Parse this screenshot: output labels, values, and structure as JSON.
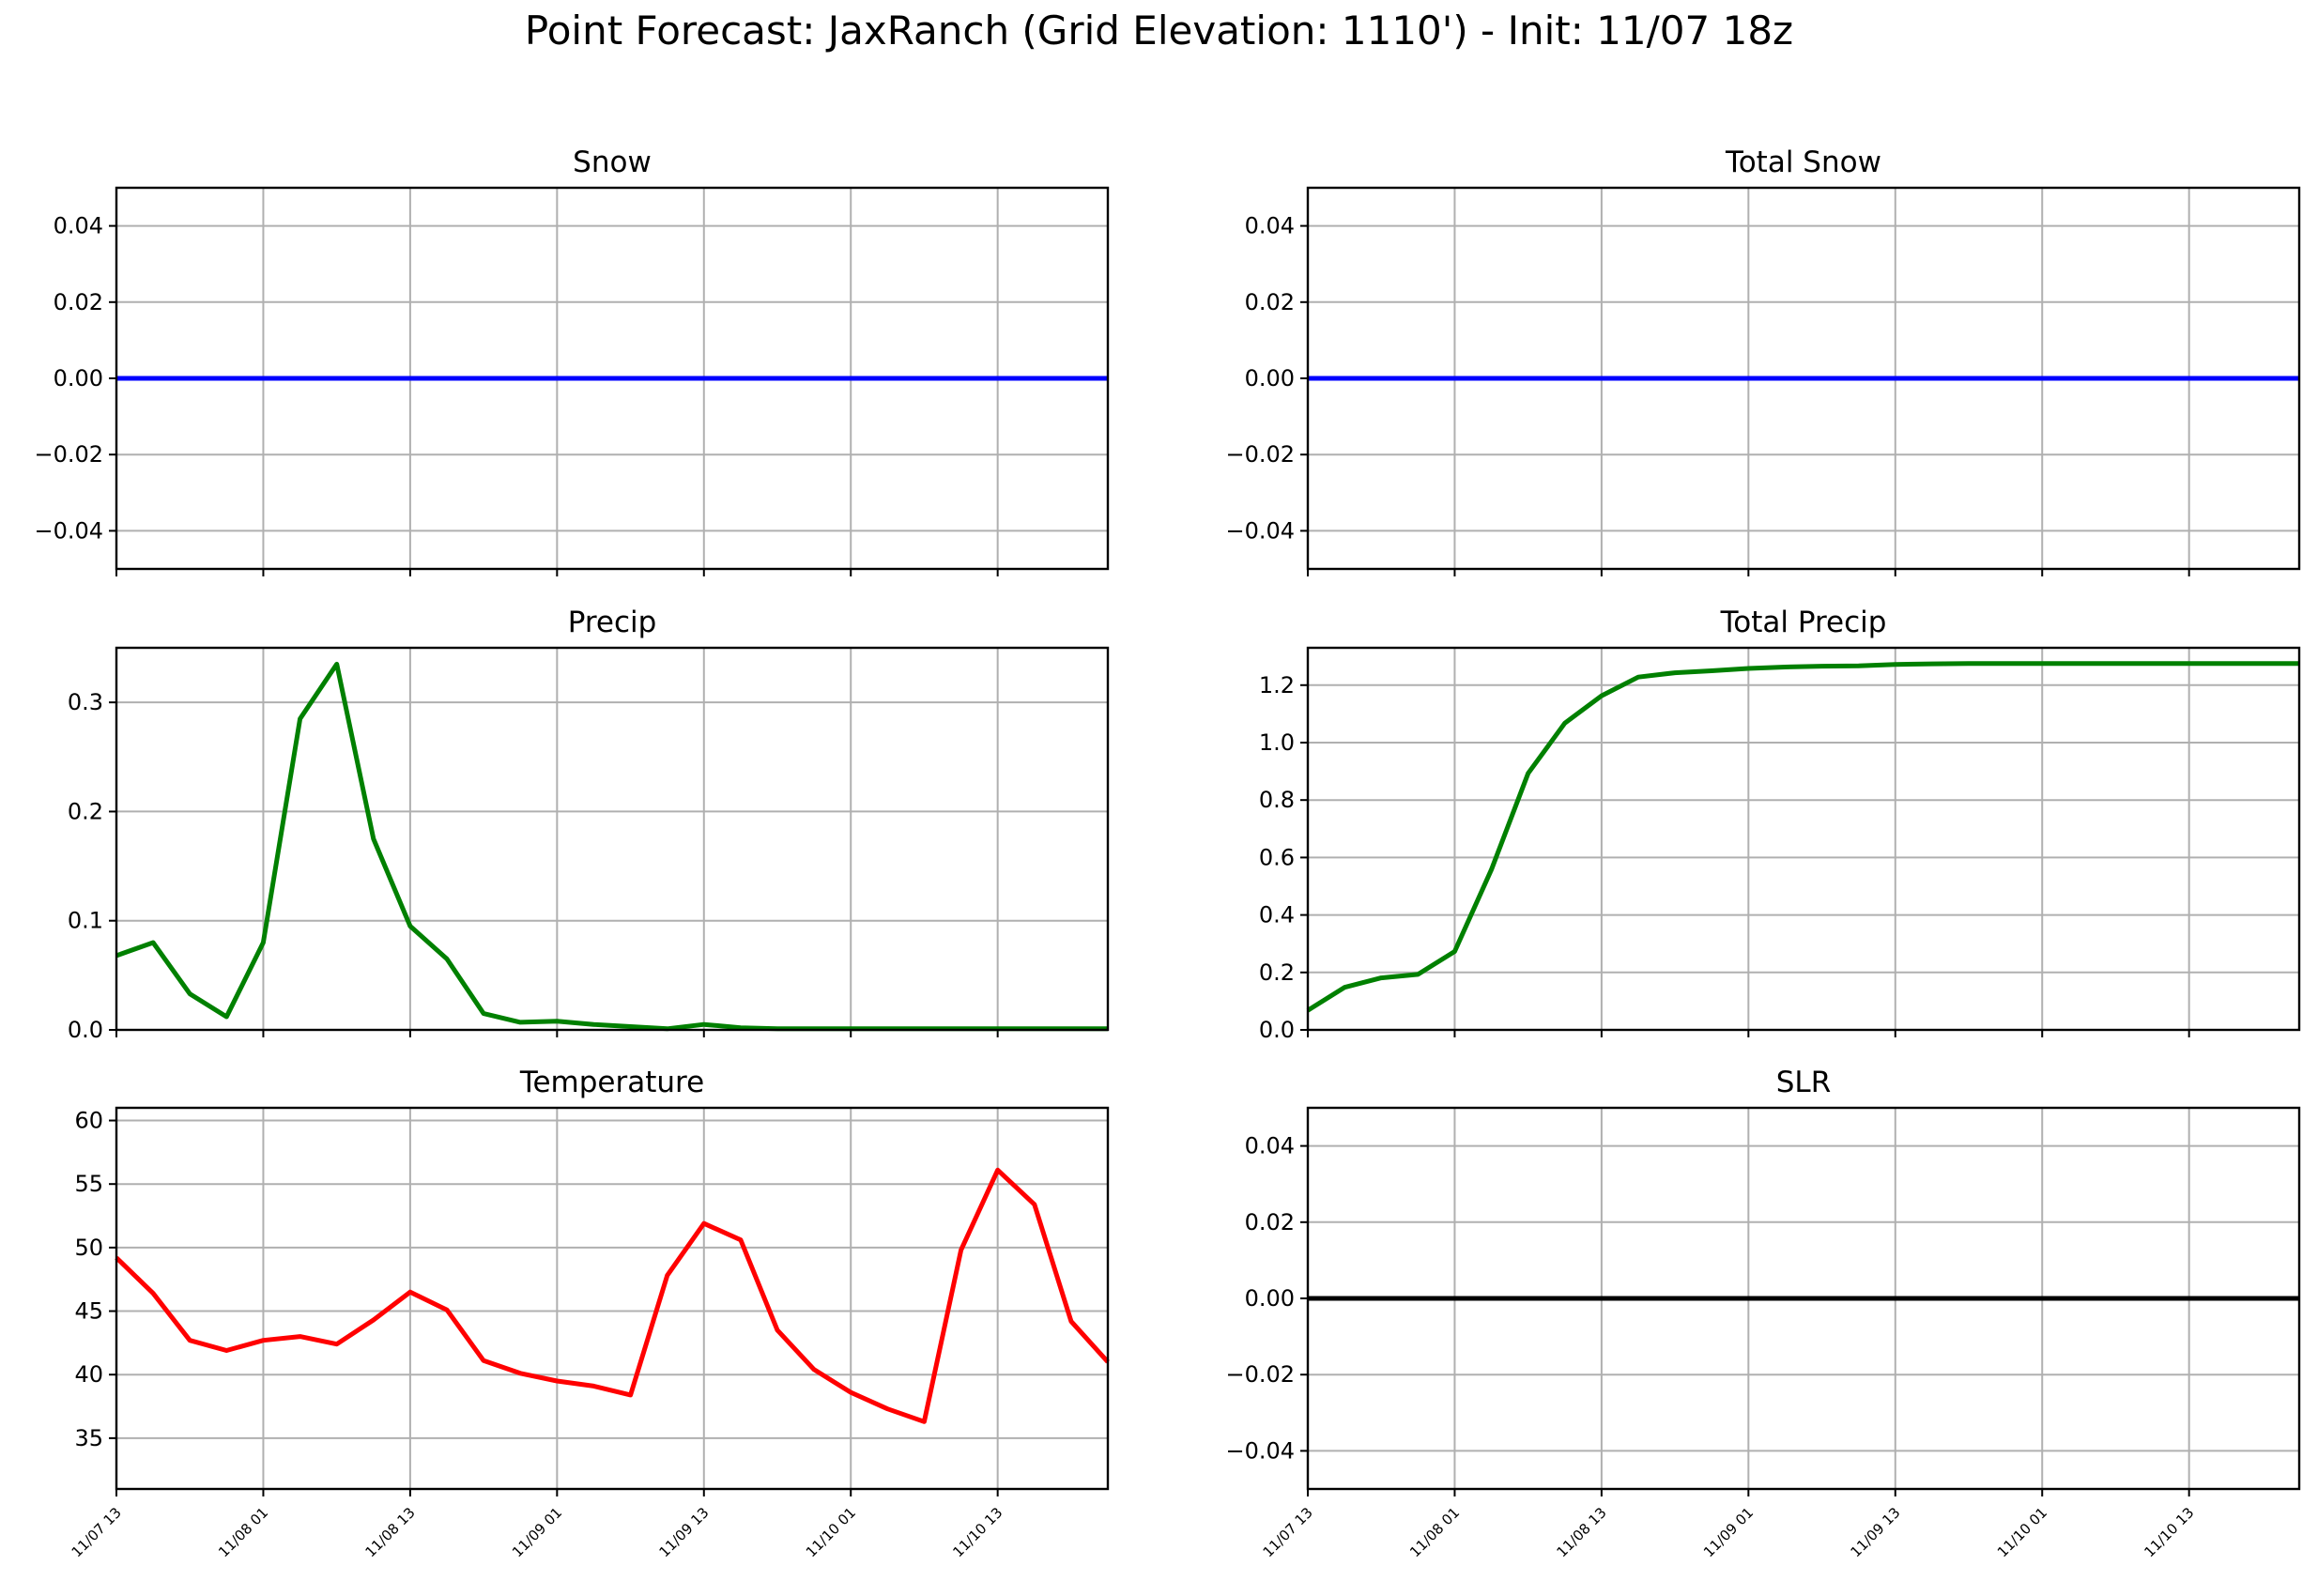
{
  "title": "Point Forecast: JaxRanch (Grid Elevation: 1110') - Init: 11/07 18z",
  "x_tick_labels": [
    "11/07 13",
    "11/08 01",
    "11/08 13",
    "11/09 01",
    "11/09 13",
    "11/10 01",
    "11/10 13"
  ],
  "chart_data": [
    {
      "type": "line",
      "title": "Snow",
      "x_range_hours": [
        0,
        81
      ],
      "ylim": [
        -0.05,
        0.05
      ],
      "yticks": [
        "0.04",
        "0.02",
        "0.00",
        "−0.02",
        "−0.04"
      ],
      "grid": true,
      "series": [
        {
          "color": "#0000ff",
          "x": [
            0,
            81
          ],
          "y": [
            0,
            0
          ]
        }
      ]
    },
    {
      "type": "line",
      "title": "Total Snow",
      "x_range_hours": [
        0,
        81
      ],
      "ylim": [
        -0.05,
        0.05
      ],
      "yticks": [
        "0.04",
        "0.02",
        "0.00",
        "−0.02",
        "−0.04"
      ],
      "grid": true,
      "series": [
        {
          "color": "#0000ff",
          "x": [
            0,
            81
          ],
          "y": [
            0,
            0
          ]
        }
      ]
    },
    {
      "type": "line",
      "title": "Precip",
      "x_range_hours": [
        0,
        81
      ],
      "ylim": [
        0,
        0.35
      ],
      "yticks": [
        "0.3",
        "0.2",
        "0.1",
        "0.0"
      ],
      "grid": true,
      "series": [
        {
          "color": "#008000",
          "x": [
            0,
            3,
            6,
            9,
            12,
            15,
            18,
            21,
            24,
            27,
            30,
            33,
            36,
            39,
            42,
            45,
            48,
            51,
            54,
            57,
            60,
            63,
            66,
            69,
            72,
            75,
            78,
            81
          ],
          "y": [
            0.068,
            0.08,
            0.033,
            0.012,
            0.08,
            0.285,
            0.335,
            0.175,
            0.095,
            0.065,
            0.015,
            0.007,
            0.008,
            0.005,
            0.003,
            0.001,
            0.005,
            0.002,
            0.001,
            0.001,
            0.001,
            0.001,
            0.001,
            0.001,
            0.001,
            0.001,
            0.001,
            0.001
          ]
        }
      ]
    },
    {
      "type": "line",
      "title": "Total Precip",
      "x_range_hours": [
        0,
        81
      ],
      "ylim": [
        0,
        1.33
      ],
      "yticks": [
        "1.2",
        "1.0",
        "0.8",
        "0.6",
        "0.4",
        "0.2",
        "0.0"
      ],
      "grid": true,
      "series": [
        {
          "color": "#008000",
          "x": [
            0,
            3,
            6,
            9,
            12,
            15,
            18,
            21,
            24,
            27,
            30,
            33,
            36,
            39,
            42,
            45,
            48,
            51,
            54,
            57,
            60,
            63,
            66,
            69,
            72,
            75,
            78,
            81
          ],
          "y": [
            0.068,
            0.148,
            0.181,
            0.193,
            0.273,
            0.558,
            0.893,
            1.068,
            1.163,
            1.228,
            1.243,
            1.25,
            1.258,
            1.263,
            1.266,
            1.267,
            1.272,
            1.274,
            1.275,
            1.275,
            1.275,
            1.275,
            1.275,
            1.275,
            1.275,
            1.275,
            1.275,
            1.275
          ]
        }
      ]
    },
    {
      "type": "line",
      "title": "Temperature",
      "x_range_hours": [
        0,
        81
      ],
      "ylim": [
        31,
        61
      ],
      "yticks": [
        "60",
        "55",
        "50",
        "45",
        "40",
        "35"
      ],
      "grid": true,
      "series": [
        {
          "color": "#ff0000",
          "x": [
            0,
            3,
            6,
            9,
            12,
            15,
            18,
            21,
            24,
            27,
            30,
            33,
            36,
            39,
            42,
            45,
            48,
            51,
            54,
            57,
            60,
            63,
            66,
            69,
            72,
            75,
            78,
            81
          ],
          "y": [
            49.2,
            46.4,
            42.7,
            41.9,
            42.7,
            43.0,
            42.4,
            44.3,
            46.5,
            45.1,
            41.1,
            40.1,
            39.5,
            39.1,
            38.4,
            47.8,
            51.9,
            50.6,
            43.5,
            40.4,
            38.6,
            37.3,
            36.3,
            49.8,
            56.1,
            53.4,
            44.2,
            41.0
          ]
        }
      ]
    },
    {
      "type": "line",
      "title": "SLR",
      "x_range_hours": [
        0,
        81
      ],
      "ylim": [
        -0.05,
        0.05
      ],
      "yticks": [
        "0.04",
        "0.02",
        "0.00",
        "−0.02",
        "−0.04"
      ],
      "grid": true,
      "series": [
        {
          "color": "#000000",
          "x": [
            0,
            81
          ],
          "y": [
            0,
            0
          ]
        }
      ]
    }
  ]
}
